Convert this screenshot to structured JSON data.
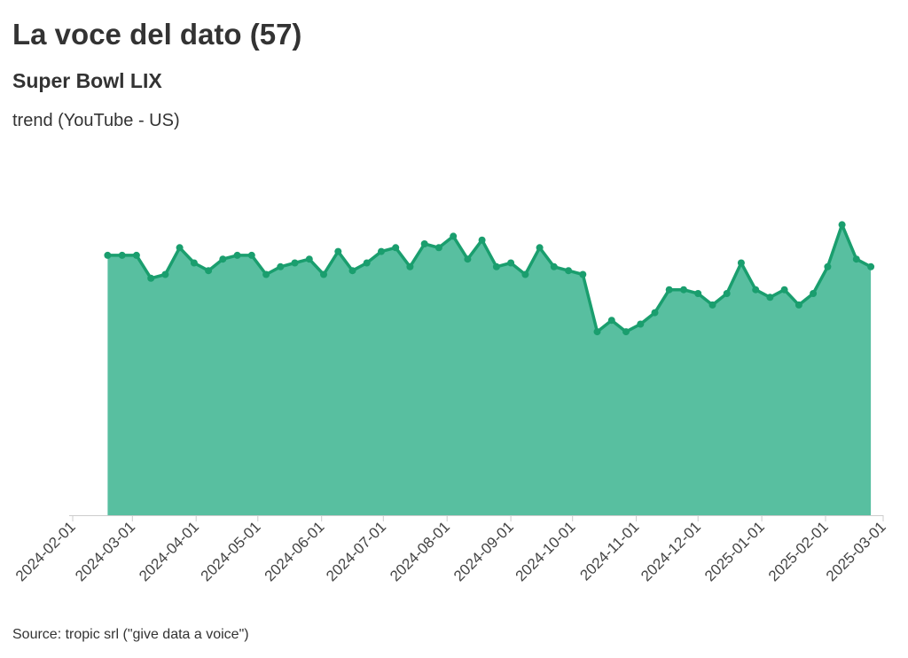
{
  "header": {
    "title": "La voce del dato (57)",
    "subtitle": "Super Bowl LIX",
    "note": "trend (YouTube - US)"
  },
  "footer": {
    "source": "Source: tropic srl (\"give data a voice\")"
  },
  "colors": {
    "line": "#1a9e6e",
    "area": "#58bfa0",
    "axis": "#cccccc"
  },
  "chart_data": {
    "type": "area",
    "title": "",
    "xlabel": "",
    "ylabel": "",
    "x_axis": "date",
    "xlim": [
      "2024-02-01",
      "2025-03-01"
    ],
    "ylim": [
      0,
      100
    ],
    "grid": false,
    "legend": "none",
    "xticks": [
      "2024-02-01",
      "2024-03-01",
      "2024-04-01",
      "2024-05-01",
      "2024-06-01",
      "2024-07-01",
      "2024-08-01",
      "2024-09-01",
      "2024-10-01",
      "2024-11-01",
      "2024-12-01",
      "2025-01-01",
      "2025-02-01",
      "2025-03-01"
    ],
    "series": [
      {
        "x": [
          "2024-02-18",
          "2024-02-25",
          "2024-03-03",
          "2024-03-10",
          "2024-03-17",
          "2024-03-24",
          "2024-03-31",
          "2024-04-07",
          "2024-04-14",
          "2024-04-21",
          "2024-04-28",
          "2024-05-05",
          "2024-05-12",
          "2024-05-19",
          "2024-05-26",
          "2024-06-02",
          "2024-06-09",
          "2024-06-16",
          "2024-06-23",
          "2024-06-30",
          "2024-07-07",
          "2024-07-14",
          "2024-07-21",
          "2024-07-28",
          "2024-08-04",
          "2024-08-11",
          "2024-08-18",
          "2024-08-25",
          "2024-09-01",
          "2024-09-08",
          "2024-09-15",
          "2024-09-22",
          "2024-09-29",
          "2024-10-06",
          "2024-10-13",
          "2024-10-20",
          "2024-10-27",
          "2024-11-03",
          "2024-11-10",
          "2024-11-17",
          "2024-11-24",
          "2024-12-01",
          "2024-12-08",
          "2024-12-15",
          "2024-12-22",
          "2024-12-29",
          "2025-01-05",
          "2025-01-12",
          "2025-01-19",
          "2025-01-26",
          "2025-02-02",
          "2025-02-09",
          "2025-02-16",
          "2025-02-23"
        ],
        "values": [
          68,
          68,
          68,
          62,
          63,
          70,
          66,
          64,
          67,
          68,
          68,
          63,
          65,
          66,
          67,
          63,
          69,
          64,
          66,
          69,
          70,
          65,
          71,
          70,
          73,
          67,
          72,
          65,
          66,
          63,
          70,
          65,
          64,
          63,
          48,
          51,
          48,
          50,
          53,
          59,
          59,
          58,
          55,
          58,
          66,
          59,
          57,
          59,
          55,
          58,
          65,
          76,
          67,
          65
        ]
      }
    ]
  }
}
